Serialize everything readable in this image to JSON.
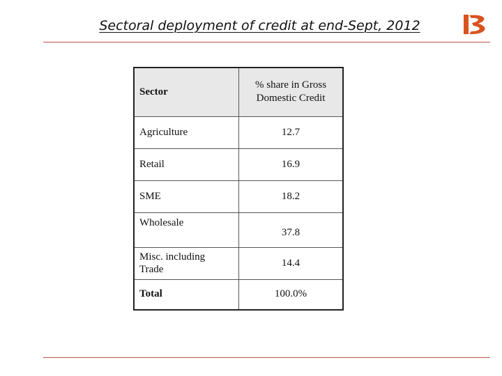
{
  "slide": {
    "title": "Sectoral deployment of credit at end-Sept, 2012"
  },
  "logo": {
    "name": "bank-logo",
    "color": "#d9531e"
  },
  "table": {
    "header": {
      "sector": "Sector",
      "share": "% share in Gross Domestic Credit"
    },
    "rows": [
      {
        "sector": "Agriculture",
        "share": "12.7"
      },
      {
        "sector": "Retail",
        "share": "16.9"
      },
      {
        "sector": "SME",
        "share": "18.2"
      },
      {
        "sector": "Wholesale",
        "share": "37.8"
      },
      {
        "sector": "Misc. including Trade",
        "share": "14.4"
      }
    ],
    "total": {
      "sector": "Total",
      "share": "100.0%"
    }
  },
  "colors": {
    "rule": "#c0504d",
    "header_bg": "#e8e8e8"
  }
}
